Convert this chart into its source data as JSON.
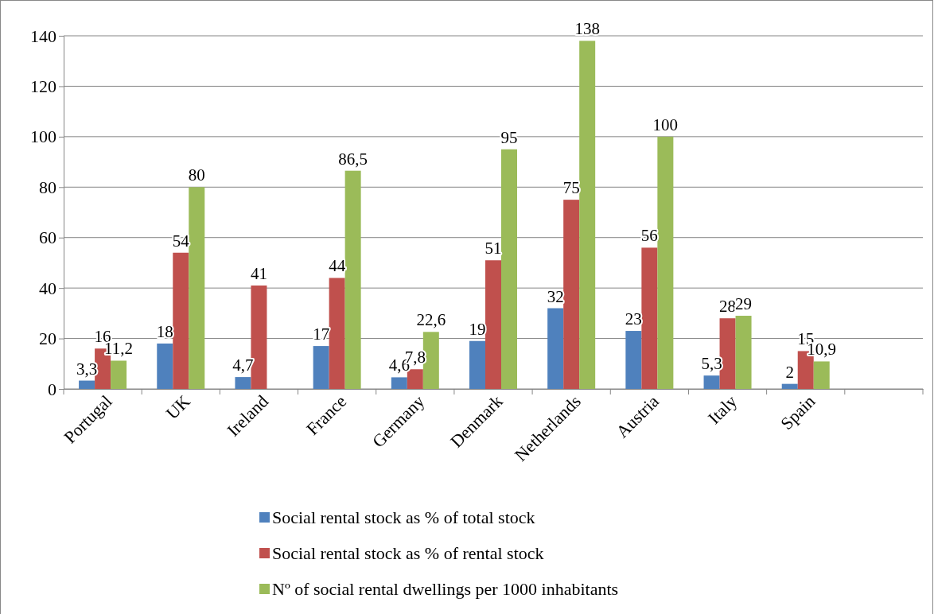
{
  "chart_data": {
    "type": "bar",
    "categories": [
      "Portugal",
      "UK",
      "Ireland",
      "France",
      "Germany",
      "Denmark",
      "Netherlands",
      "Austria",
      "Italy",
      "Spain",
      null
    ],
    "ylim": [
      0,
      140
    ],
    "yticks": [
      0,
      20,
      40,
      60,
      80,
      100,
      120,
      140
    ],
    "grid": "y",
    "legend": "bottom",
    "series": [
      {
        "name": "Social rental stock as % of total stock",
        "color": "#4f81bd",
        "values": [
          3.3,
          18,
          4.7,
          17,
          4.6,
          19,
          32,
          23,
          5.3,
          2,
          null
        ],
        "value_labels": [
          "3,3",
          "18",
          "4,7",
          "17",
          "4,6",
          "19",
          "32",
          "23",
          "5,3",
          "2",
          null
        ]
      },
      {
        "name": "Social rental stock as % of rental stock",
        "color": "#c0504d",
        "values": [
          16,
          54,
          41,
          44,
          7.8,
          51,
          75,
          56,
          28,
          15,
          null
        ],
        "value_labels": [
          "16",
          "54",
          "41",
          "44",
          "7,8",
          "51",
          "75",
          "56",
          "28",
          "15",
          null
        ]
      },
      {
        "name": "Nº of social rental dwellings per 1000 inhabitants",
        "color": "#9bbb59",
        "values": [
          11.2,
          80,
          null,
          86.5,
          22.6,
          95,
          138,
          100,
          29,
          10.9,
          null
        ],
        "value_labels": [
          "11,2",
          "80",
          null,
          "86,5",
          "22,6",
          "95",
          "138",
          "100",
          "29",
          "10,9",
          null
        ]
      }
    ]
  }
}
